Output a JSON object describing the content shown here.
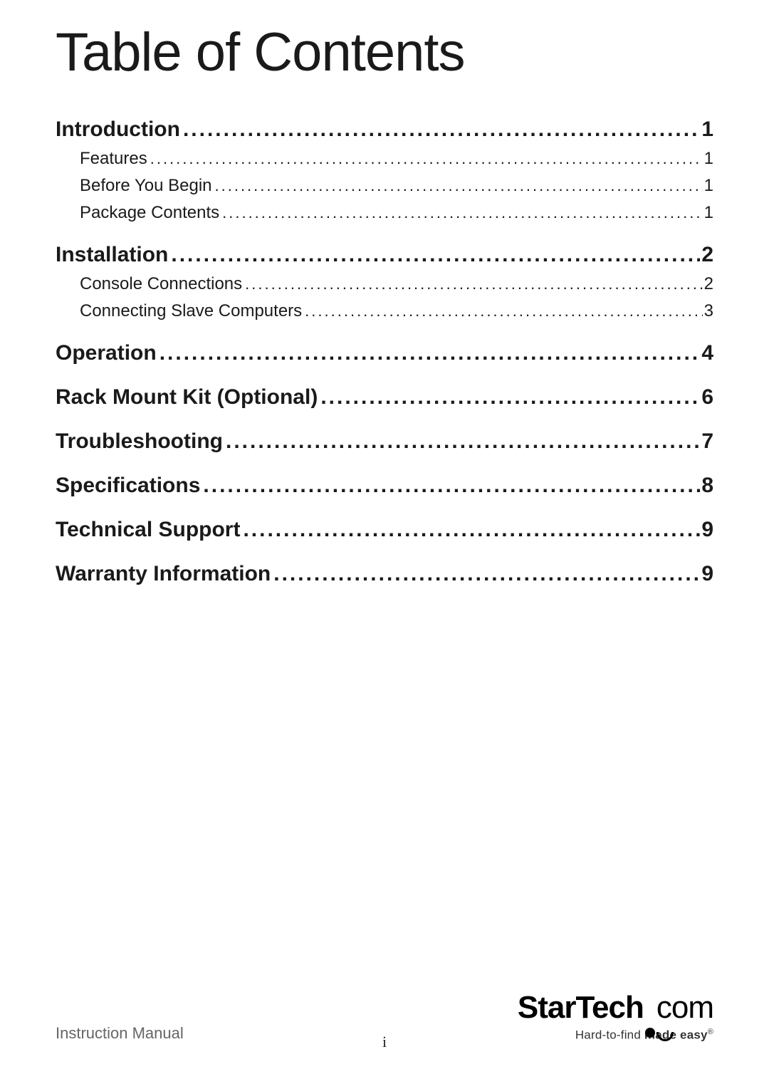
{
  "title": "Table of Contents",
  "colors": {
    "text": "#1a1a1a",
    "muted": "#666666",
    "background": "#ffffff"
  },
  "typography": {
    "title_fontsize": 76,
    "section_fontsize": 30,
    "sub_fontsize": 24,
    "footer_fontsize": 22,
    "section_weight": 600,
    "sub_weight": 400
  },
  "toc": [
    {
      "level": "sec",
      "title": "Introduction ",
      "page": "1"
    },
    {
      "level": "sub",
      "title": "Features",
      "page": " 1"
    },
    {
      "level": "sub",
      "title": "Before You Begin ",
      "page": " 1"
    },
    {
      "level": "sub",
      "title": "Package Contents ",
      "page": " 1"
    },
    {
      "level": "sec",
      "title": "Installation ",
      "page": "2"
    },
    {
      "level": "sub",
      "title": "Console Connections",
      "page": " 2"
    },
    {
      "level": "sub",
      "title": "Connecting Slave Computers",
      "page": " 3"
    },
    {
      "level": "sec",
      "title": "Operation ",
      "page": "4"
    },
    {
      "level": "sec",
      "title": "Rack Mount Kit (Optional) ",
      "page": "6"
    },
    {
      "level": "sec",
      "title": "Troubleshooting",
      "page": "7"
    },
    {
      "level": "sec",
      "title": "Specifications",
      "page": "8"
    },
    {
      "level": "sec",
      "title": "Technical Support ",
      "page": "9"
    },
    {
      "level": "sec",
      "title": "Warranty Information",
      "page": "9"
    }
  ],
  "footer": {
    "left": "Instruction Manual",
    "center": "i",
    "logo_main": "StarTech",
    "logo_suffix": "com",
    "tagline_pre": "Hard-to-find ",
    "tagline_bold": "made easy",
    "tagline_reg": "®"
  },
  "dot_fill": "............................................................................................................................................................................................................"
}
